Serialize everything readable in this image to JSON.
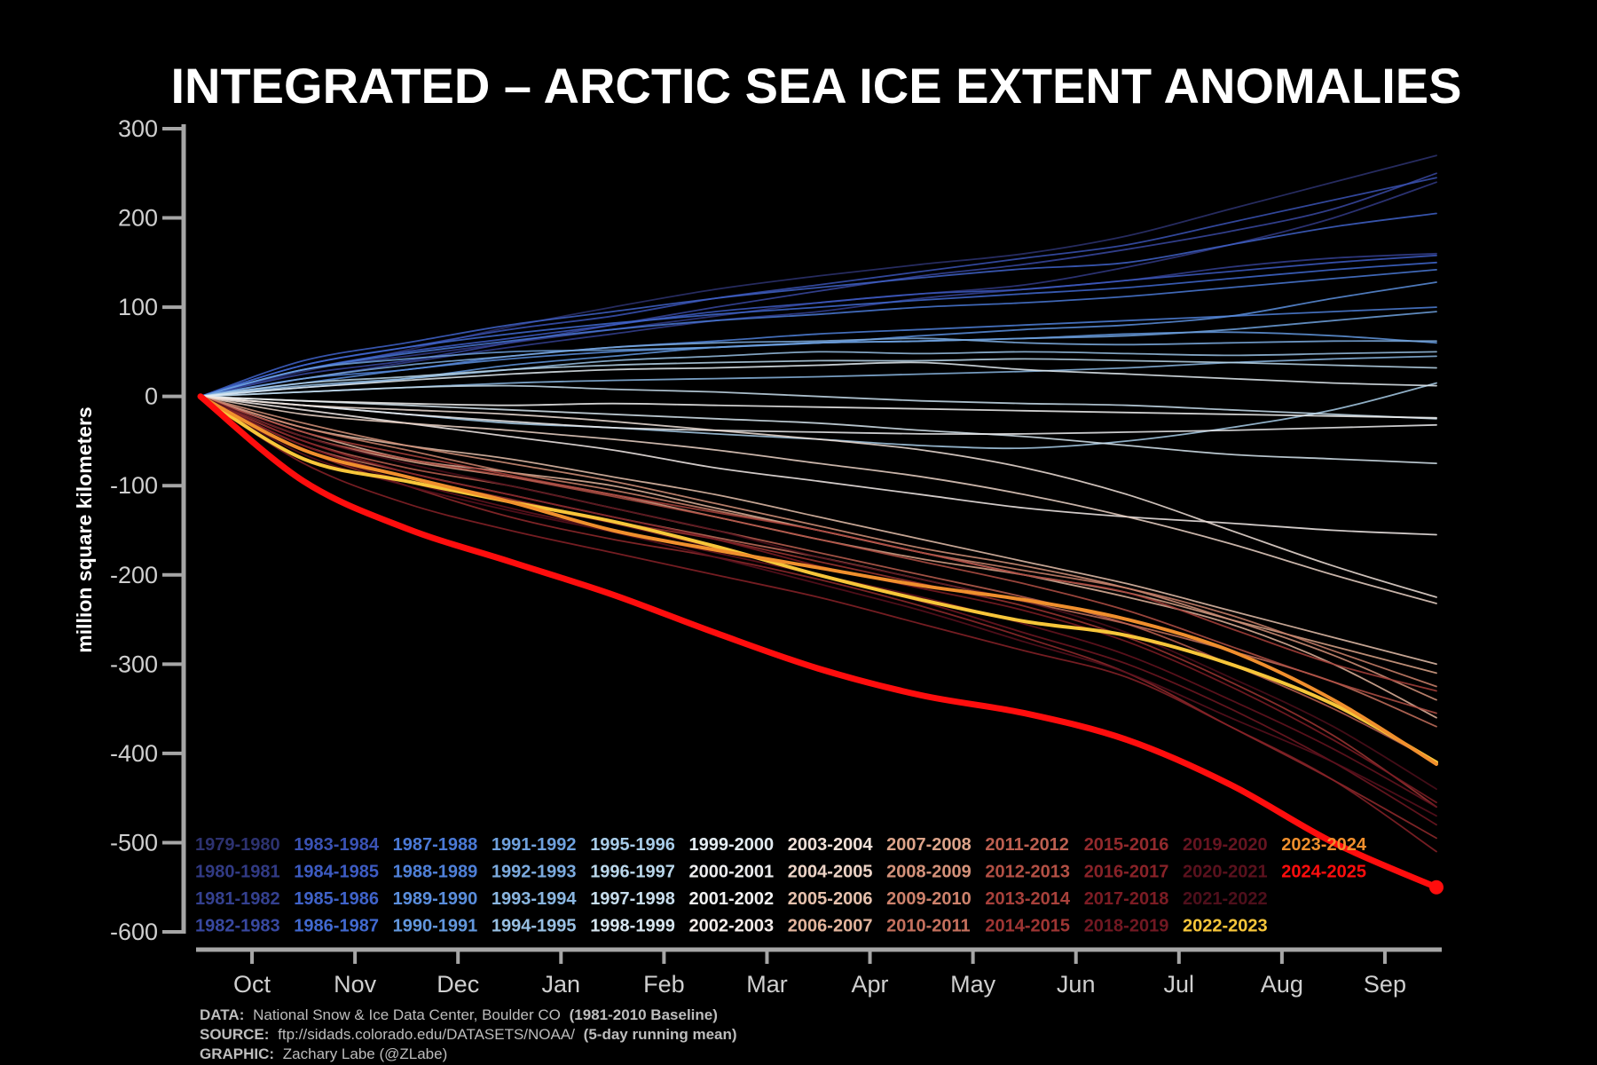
{
  "chart_data": {
    "type": "line",
    "title": "INTEGRATED – ARCTIC SEA ICE EXTENT ANOMALIES",
    "ylabel": "million square kilometers",
    "xlabel": "",
    "ylim": [
      -600,
      300
    ],
    "yticks": [
      300,
      200,
      100,
      0,
      -100,
      -200,
      -300,
      -400,
      -500,
      -600
    ],
    "ytick_labels": [
      "300",
      "200",
      "100",
      "0",
      "-100",
      "-200",
      "-300",
      "-400",
      "-500",
      "-600"
    ],
    "x_months": [
      "Oct",
      "Nov",
      "Dec",
      "Jan",
      "Feb",
      "Mar",
      "Apr",
      "May",
      "Jun",
      "Jul",
      "Aug",
      "Sep"
    ],
    "x_values": [
      0,
      1,
      2,
      3,
      4,
      5,
      6,
      7,
      8,
      9,
      10,
      11,
      12
    ],
    "grid": false,
    "legend_placement": "bottom",
    "series": [
      {
        "name": "1979-1980",
        "color": "#2d3270",
        "values": [
          0,
          28,
          52,
          78,
          100,
          120,
          135,
          148,
          160,
          180,
          210,
          240,
          270
        ]
      },
      {
        "name": "1980-1981",
        "color": "#313a84",
        "values": [
          0,
          30,
          45,
          60,
          75,
          90,
          105,
          115,
          125,
          145,
          170,
          200,
          240
        ]
      },
      {
        "name": "1981-1982",
        "color": "#34408f",
        "values": [
          0,
          20,
          38,
          55,
          70,
          85,
          95,
          110,
          120,
          130,
          145,
          155,
          160
        ]
      },
      {
        "name": "1982-1983",
        "color": "#3848a0",
        "values": [
          0,
          25,
          40,
          60,
          80,
          100,
          118,
          135,
          148,
          165,
          185,
          210,
          250
        ]
      },
      {
        "name": "1983-1984",
        "color": "#3a52b4",
        "values": [
          0,
          35,
          55,
          75,
          90,
          110,
          125,
          140,
          155,
          170,
          195,
          220,
          245
        ]
      },
      {
        "name": "1984-1985",
        "color": "#3d5bc2",
        "values": [
          0,
          30,
          50,
          65,
          80,
          95,
          105,
          115,
          120,
          130,
          140,
          150,
          158
        ]
      },
      {
        "name": "1985-1986",
        "color": "#3f62c8",
        "values": [
          0,
          40,
          60,
          80,
          95,
          110,
          122,
          133,
          143,
          150,
          170,
          190,
          205
        ]
      },
      {
        "name": "1986-1987",
        "color": "#4169cf",
        "values": [
          0,
          35,
          55,
          70,
          82,
          92,
          100,
          108,
          115,
          122,
          132,
          142,
          150
        ]
      },
      {
        "name": "1987-1988",
        "color": "#4a79d6",
        "values": [
          0,
          30,
          48,
          62,
          75,
          85,
          92,
          100,
          105,
          112,
          122,
          132,
          142
        ]
      },
      {
        "name": "1988-1989",
        "color": "#4f80d8",
        "values": [
          0,
          20,
          30,
          45,
          55,
          62,
          70,
          75,
          80,
          85,
          90,
          95,
          100
        ]
      },
      {
        "name": "1989-1990",
        "color": "#5a8edc",
        "values": [
          0,
          15,
          30,
          42,
          50,
          55,
          60,
          68,
          75,
          80,
          90,
          110,
          128
        ]
      },
      {
        "name": "1990-1991",
        "color": "#6297dd",
        "values": [
          0,
          10,
          20,
          35,
          45,
          55,
          60,
          62,
          65,
          70,
          72,
          68,
          60
        ]
      },
      {
        "name": "1991-1992",
        "color": "#6fa1dd",
        "values": [
          0,
          30,
          42,
          50,
          52,
          55,
          60,
          62,
          65,
          68,
          75,
          85,
          95
        ]
      },
      {
        "name": "1992-1993",
        "color": "#7cabdf",
        "values": [
          0,
          20,
          35,
          45,
          55,
          60,
          62,
          65,
          60,
          58,
          60,
          62,
          62
        ]
      },
      {
        "name": "1993-1994",
        "color": "#8ab6e0",
        "values": [
          0,
          5,
          10,
          15,
          18,
          20,
          22,
          25,
          28,
          32,
          38,
          42,
          45
        ]
      },
      {
        "name": "1994-1995",
        "color": "#98c0e3",
        "values": [
          0,
          12,
          20,
          30,
          40,
          45,
          50,
          48,
          50,
          48,
          46,
          48,
          50
        ]
      },
      {
        "name": "1995-1996",
        "color": "#a8cce8",
        "values": [
          0,
          -10,
          -20,
          -30,
          -35,
          -42,
          -48,
          -55,
          -58,
          -50,
          -35,
          -15,
          15
        ]
      },
      {
        "name": "1996-1997",
        "color": "#b9d6ea",
        "values": [
          0,
          15,
          22,
          30,
          35,
          38,
          40,
          40,
          42,
          40,
          38,
          35,
          32
        ]
      },
      {
        "name": "1997-1998",
        "color": "#c7ddec",
        "values": [
          0,
          5,
          10,
          12,
          8,
          5,
          0,
          -5,
          -8,
          -10,
          -15,
          -20,
          -25
        ]
      },
      {
        "name": "1998-1999",
        "color": "#d6e5ef",
        "values": [
          0,
          -5,
          -10,
          -15,
          -20,
          -25,
          -30,
          -38,
          -45,
          -55,
          -65,
          -70,
          -75
        ]
      },
      {
        "name": "1999-2000",
        "color": "#e3ecf2",
        "values": [
          0,
          10,
          18,
          25,
          30,
          32,
          35,
          38,
          30,
          25,
          20,
          15,
          12
        ]
      },
      {
        "name": "2000-2001",
        "color": "#ececee",
        "values": [
          0,
          -10,
          -20,
          -28,
          -35,
          -38,
          -40,
          -42,
          -42,
          -40,
          -38,
          -35,
          -32
        ]
      },
      {
        "name": "2001-2002",
        "color": "#f2f2f2",
        "values": [
          0,
          -5,
          -8,
          -10,
          -8,
          -10,
          -12,
          -14,
          -16,
          -18,
          -20,
          -22,
          -24
        ]
      },
      {
        "name": "2002-2003",
        "color": "#f4ecea",
        "values": [
          0,
          -15,
          -30,
          -45,
          -60,
          -80,
          -95,
          -110,
          -125,
          -135,
          -142,
          -150,
          -155
        ]
      },
      {
        "name": "2003-2004",
        "color": "#f0e0d8",
        "values": [
          0,
          -10,
          -15,
          -20,
          -28,
          -38,
          -48,
          -60,
          -80,
          -110,
          -150,
          -190,
          -225
        ]
      },
      {
        "name": "2004-2005",
        "color": "#ebd2c5",
        "values": [
          0,
          -20,
          -30,
          -38,
          -48,
          -60,
          -75,
          -90,
          -110,
          -135,
          -165,
          -200,
          -232
        ]
      },
      {
        "name": "2005-2006",
        "color": "#e6c1ad",
        "values": [
          0,
          -35,
          -55,
          -70,
          -90,
          -110,
          -135,
          -160,
          -185,
          -210,
          -240,
          -270,
          -300
        ]
      },
      {
        "name": "2006-2007",
        "color": "#e2b49c",
        "values": [
          0,
          -40,
          -70,
          -85,
          -100,
          -125,
          -150,
          -175,
          -200,
          -225,
          -255,
          -300,
          -360
        ]
      },
      {
        "name": "2007-2008",
        "color": "#dca48a",
        "values": [
          0,
          -45,
          -72,
          -90,
          -110,
          -135,
          -160,
          -182,
          -200,
          -220,
          -250,
          -280,
          -310
        ]
      },
      {
        "name": "2008-2009",
        "color": "#d4927a",
        "values": [
          0,
          -30,
          -55,
          -75,
          -95,
          -120,
          -145,
          -170,
          -190,
          -215,
          -250,
          -290,
          -340
        ]
      },
      {
        "name": "2009-2010",
        "color": "#cd826c",
        "values": [
          0,
          -35,
          -60,
          -85,
          -105,
          -128,
          -150,
          -175,
          -195,
          -215,
          -245,
          -285,
          -325
        ]
      },
      {
        "name": "2010-2011",
        "color": "#c4705d",
        "values": [
          0,
          -55,
          -85,
          -110,
          -135,
          -158,
          -180,
          -205,
          -230,
          -255,
          -285,
          -320,
          -370
        ]
      },
      {
        "name": "2011-2012",
        "color": "#bc5f50",
        "values": [
          0,
          -50,
          -80,
          -100,
          -125,
          -150,
          -175,
          -200,
          -225,
          -255,
          -300,
          -350,
          -410
        ]
      },
      {
        "name": "2012-2013",
        "color": "#b35045",
        "values": [
          0,
          -45,
          -70,
          -90,
          -112,
          -135,
          -160,
          -185,
          -210,
          -240,
          -280,
          -320,
          -355
        ]
      },
      {
        "name": "2013-2014",
        "color": "#a8413b",
        "values": [
          0,
          -40,
          -65,
          -88,
          -110,
          -130,
          -150,
          -175,
          -200,
          -220,
          -260,
          -300,
          -330
        ]
      },
      {
        "name": "2014-2015",
        "color": "#9e3533",
        "values": [
          0,
          -55,
          -90,
          -115,
          -140,
          -160,
          -185,
          -210,
          -235,
          -270,
          -320,
          -380,
          -460
        ]
      },
      {
        "name": "2015-2016",
        "color": "#932a2d",
        "values": [
          0,
          -60,
          -100,
          -135,
          -160,
          -180,
          -205,
          -235,
          -270,
          -310,
          -370,
          -430,
          -495
        ]
      },
      {
        "name": "2016-2017",
        "color": "#882228",
        "values": [
          0,
          -75,
          -120,
          -150,
          -175,
          -200,
          -225,
          -255,
          -285,
          -315,
          -370,
          -430,
          -510
        ]
      },
      {
        "name": "2017-2018",
        "color": "#7c1c24",
        "values": [
          0,
          -50,
          -85,
          -110,
          -135,
          -160,
          -190,
          -215,
          -240,
          -275,
          -325,
          -385,
          -455
        ]
      },
      {
        "name": "2018-2019",
        "color": "#711822",
        "values": [
          0,
          -55,
          -90,
          -118,
          -142,
          -170,
          -200,
          -230,
          -265,
          -300,
          -350,
          -410,
          -480
        ]
      },
      {
        "name": "2019-2020",
        "color": "#661420",
        "values": [
          0,
          -60,
          -95,
          -125,
          -150,
          -175,
          -200,
          -225,
          -255,
          -290,
          -340,
          -395,
          -460
        ]
      },
      {
        "name": "2020-2021",
        "color": "#5a111d",
        "values": [
          0,
          -65,
          -100,
          -128,
          -152,
          -180,
          -210,
          -240,
          -275,
          -310,
          -360,
          -410,
          -470
        ]
      },
      {
        "name": "2021-2022",
        "color": "#4e0f1b",
        "values": [
          0,
          -45,
          -75,
          -100,
          -125,
          -150,
          -180,
          -205,
          -230,
          -265,
          -315,
          -370,
          -440
        ]
      },
      {
        "name": "2022-2023",
        "color": "#f7c63a",
        "values": [
          0,
          -70,
          -95,
          -118,
          -140,
          -168,
          -200,
          -228,
          -252,
          -268,
          -300,
          -345,
          -410
        ]
      },
      {
        "name": "2023-2024",
        "color": "#f08f2d",
        "values": [
          0,
          -60,
          -90,
          -118,
          -150,
          -172,
          -192,
          -212,
          -228,
          -250,
          -285,
          -340,
          -412
        ]
      },
      {
        "name": "2024-2025",
        "color": "#ff0d0d",
        "values": [
          0,
          -95,
          -148,
          -185,
          -222,
          -265,
          -305,
          -335,
          -355,
          -385,
          -435,
          -500,
          -550
        ]
      }
    ],
    "highlight": [
      "2022-2023",
      "2023-2024",
      "2024-2025"
    ]
  },
  "footer": {
    "data_label": "DATA:",
    "data_text": "National Snow & Ice Data Center, Boulder CO",
    "data_note": "(1981-2010 Baseline)",
    "source_label": "SOURCE:",
    "source_text": "ftp://sidads.colorado.edu/DATASETS/NOAA/",
    "source_note": "(5-day running mean)",
    "graphic_label": "GRAPHIC:",
    "graphic_text": "Zachary Labe (@ZLabe)"
  },
  "colors": {
    "background": "#000000",
    "axis": "#a6a6a6",
    "text": "#ffffff"
  }
}
